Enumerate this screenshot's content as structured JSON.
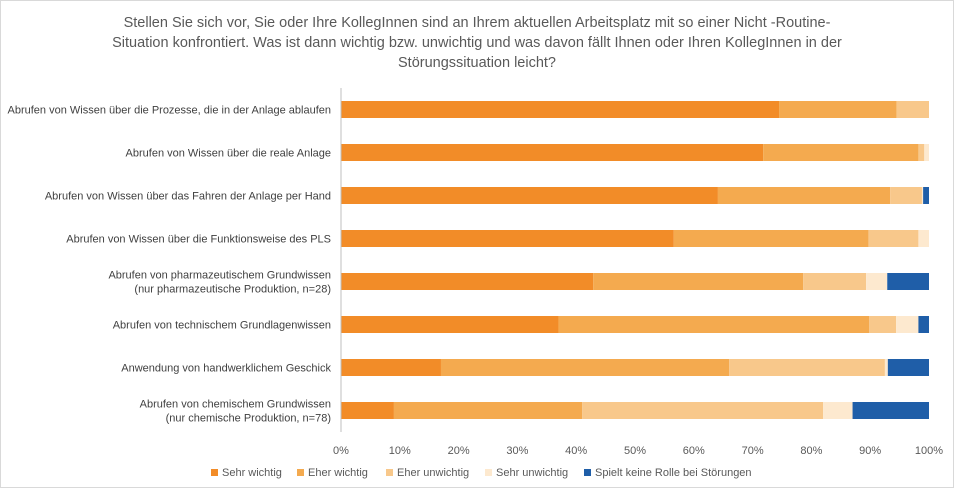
{
  "chart_data": {
    "type": "bar",
    "orientation": "horizontal",
    "stacked": "percent",
    "title_lines": [
      "Stellen Sie sich vor, Sie oder Ihre KollegInnen sind an Ihrem aktuellen Arbeitsplatz mit so einer Nicht -Routine-",
      "Situation konfrontiert. Was ist dann wichtig bzw. unwichtig und was davon fällt Ihnen oder Ihren KollegInnen in der",
      "Störungssituation leicht?"
    ],
    "categories": [
      [
        "Abrufen von Wissen über die Prozesse, die in der Anlage ablaufen"
      ],
      [
        "Abrufen von Wissen über die reale Anlage"
      ],
      [
        "Abrufen von Wissen über das Fahren der Anlage per Hand"
      ],
      [
        "Abrufen von Wissen über die Funktionsweise des PLS"
      ],
      [
        "Abrufen von pharmazeutischem Grundwissen",
        "(nur pharmazeutische Produktion, n=28)"
      ],
      [
        "Abrufen von technischem Grundlagenwissen"
      ],
      [
        "Anwendung von handwerklichem Geschick"
      ],
      [
        "Abrufen von chemischem Grundwissen",
        "(nur chemische Produktion, n=78)"
      ]
    ],
    "series": [
      {
        "name": "Sehr wichtig",
        "color": "#f28c28",
        "values": [
          74.5,
          71.8,
          64.1,
          56.6,
          42.9,
          37.0,
          17.0,
          9.0
        ]
      },
      {
        "name": "Eher wichtig",
        "color": "#f4aa4f",
        "values": [
          20.0,
          26.4,
          29.3,
          33.1,
          35.7,
          52.8,
          49.0,
          32.0
        ]
      },
      {
        "name": "Eher unwichtig",
        "color": "#f8c88b",
        "values": [
          5.5,
          1.0,
          5.4,
          8.5,
          10.7,
          4.6,
          26.5,
          41.0
        ]
      },
      {
        "name": "Sehr unwichtig",
        "color": "#fde9cf",
        "values": [
          0.0,
          0.8,
          0.2,
          1.8,
          3.6,
          3.8,
          0.5,
          5.0
        ]
      },
      {
        "name": "Spielt keine Rolle bei Störungen",
        "color": "#1f5ea8",
        "values": [
          0.0,
          0.0,
          1.0,
          0.0,
          7.1,
          1.8,
          7.0,
          13.0
        ]
      }
    ],
    "xlim": [
      0,
      100
    ],
    "xticks": [
      "0%",
      "10%",
      "20%",
      "30%",
      "40%",
      "50%",
      "60%",
      "70%",
      "80%",
      "90%",
      "100%"
    ],
    "grid": false,
    "legend_position": "bottom"
  }
}
